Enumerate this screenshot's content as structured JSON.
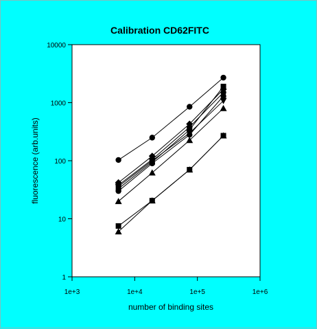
{
  "chart_data": {
    "type": "line",
    "title": "Calibration CD62FITC",
    "xlabel": "number of binding sites",
    "ylabel": "fluorescence (arb.units)",
    "x_scale": "log",
    "y_scale": "log",
    "xlim": [
      1000,
      1000000
    ],
    "ylim": [
      1,
      10000
    ],
    "x_ticks": [
      {
        "value": 1000,
        "label": "1e+3"
      },
      {
        "value": 10000,
        "label": "1e+4"
      },
      {
        "value": 100000,
        "label": "1e+5"
      },
      {
        "value": 1000000,
        "label": "1e+6"
      }
    ],
    "y_ticks": [
      {
        "value": 1,
        "label": "1"
      },
      {
        "value": 10,
        "label": "10"
      },
      {
        "value": 100,
        "label": "100"
      },
      {
        "value": 1000,
        "label": "1000"
      },
      {
        "value": 10000,
        "label": "10000"
      }
    ],
    "x": [
      5500,
      19000,
      75000,
      260000
    ],
    "grid": false,
    "series": [
      {
        "marker": "circle",
        "values": [
          103,
          250,
          850,
          2700
        ]
      },
      {
        "marker": "diamond",
        "values": [
          42,
          120,
          430,
          1700
        ]
      },
      {
        "marker": "circle",
        "values": [
          38,
          105,
          380,
          1500
        ]
      },
      {
        "marker": "square",
        "values": [
          33,
          95,
          340,
          1900
        ]
      },
      {
        "marker": "triangle-down",
        "values": [
          36,
          100,
          300,
          1080
        ]
      },
      {
        "marker": "circle",
        "values": [
          30,
          90,
          280,
          1300
        ]
      },
      {
        "marker": "triangle",
        "values": [
          20,
          62,
          225,
          800
        ]
      },
      {
        "marker": "square",
        "values": [
          7.5,
          20.5,
          70,
          270
        ]
      },
      {
        "marker": "triangle",
        "values": [
          6,
          20.5,
          70,
          270
        ]
      }
    ]
  }
}
